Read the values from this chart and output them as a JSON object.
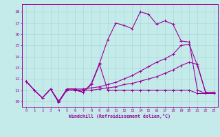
{
  "title": "",
  "xlabel": "Windchill (Refroidissement éolien,°C)",
  "bg_color": "#c5eaea",
  "line_color": "#990099",
  "grid_color": "#a8d8d8",
  "xlim": [
    -0.5,
    23.5
  ],
  "ylim": [
    9.5,
    18.7
  ],
  "xticks": [
    0,
    1,
    2,
    3,
    4,
    5,
    6,
    7,
    8,
    9,
    10,
    11,
    12,
    13,
    14,
    15,
    16,
    17,
    18,
    19,
    20,
    21,
    22,
    23
  ],
  "yticks": [
    10,
    11,
    12,
    13,
    14,
    15,
    16,
    17,
    18
  ],
  "line1_x": [
    0,
    1,
    2,
    3,
    4,
    5,
    6,
    7,
    8,
    9,
    10,
    11,
    12,
    13,
    14,
    15,
    16,
    17,
    18,
    19,
    20,
    21,
    22,
    23
  ],
  "line1_y": [
    11.8,
    11.0,
    10.3,
    11.1,
    9.9,
    11.0,
    11.0,
    10.8,
    11.5,
    13.3,
    11.0,
    11.0,
    11.0,
    11.0,
    11.0,
    11.0,
    11.0,
    11.0,
    11.0,
    11.0,
    11.0,
    10.7,
    10.7,
    10.7
  ],
  "line2_x": [
    0,
    1,
    2,
    3,
    4,
    5,
    6,
    7,
    8,
    9,
    10,
    11,
    12,
    13,
    14,
    15,
    16,
    17,
    18,
    19,
    20,
    21,
    22,
    23
  ],
  "line2_y": [
    11.8,
    11.0,
    10.3,
    11.1,
    9.9,
    11.1,
    11.1,
    10.8,
    11.6,
    13.4,
    15.5,
    17.0,
    16.8,
    16.5,
    18.0,
    17.8,
    16.9,
    17.2,
    16.9,
    15.4,
    15.3,
    11.0,
    10.7,
    10.7
  ],
  "line3_x": [
    0,
    1,
    2,
    3,
    4,
    5,
    6,
    7,
    8,
    9,
    10,
    11,
    12,
    13,
    14,
    15,
    16,
    17,
    18,
    19,
    20,
    21,
    22,
    23
  ],
  "line3_y": [
    11.8,
    11.0,
    10.3,
    11.1,
    10.0,
    11.1,
    11.1,
    11.1,
    11.2,
    11.3,
    11.5,
    11.7,
    12.0,
    12.3,
    12.7,
    13.1,
    13.5,
    13.8,
    14.2,
    15.0,
    15.1,
    13.2,
    10.8,
    10.8
  ],
  "line4_x": [
    0,
    1,
    2,
    3,
    4,
    5,
    6,
    7,
    8,
    9,
    10,
    11,
    12,
    13,
    14,
    15,
    16,
    17,
    18,
    19,
    20,
    21,
    22,
    23
  ],
  "line4_y": [
    11.8,
    11.0,
    10.3,
    11.1,
    10.0,
    11.0,
    11.0,
    11.0,
    11.0,
    11.1,
    11.2,
    11.3,
    11.5,
    11.6,
    11.8,
    12.0,
    12.2,
    12.5,
    12.8,
    13.2,
    13.5,
    13.3,
    10.8,
    10.8
  ]
}
